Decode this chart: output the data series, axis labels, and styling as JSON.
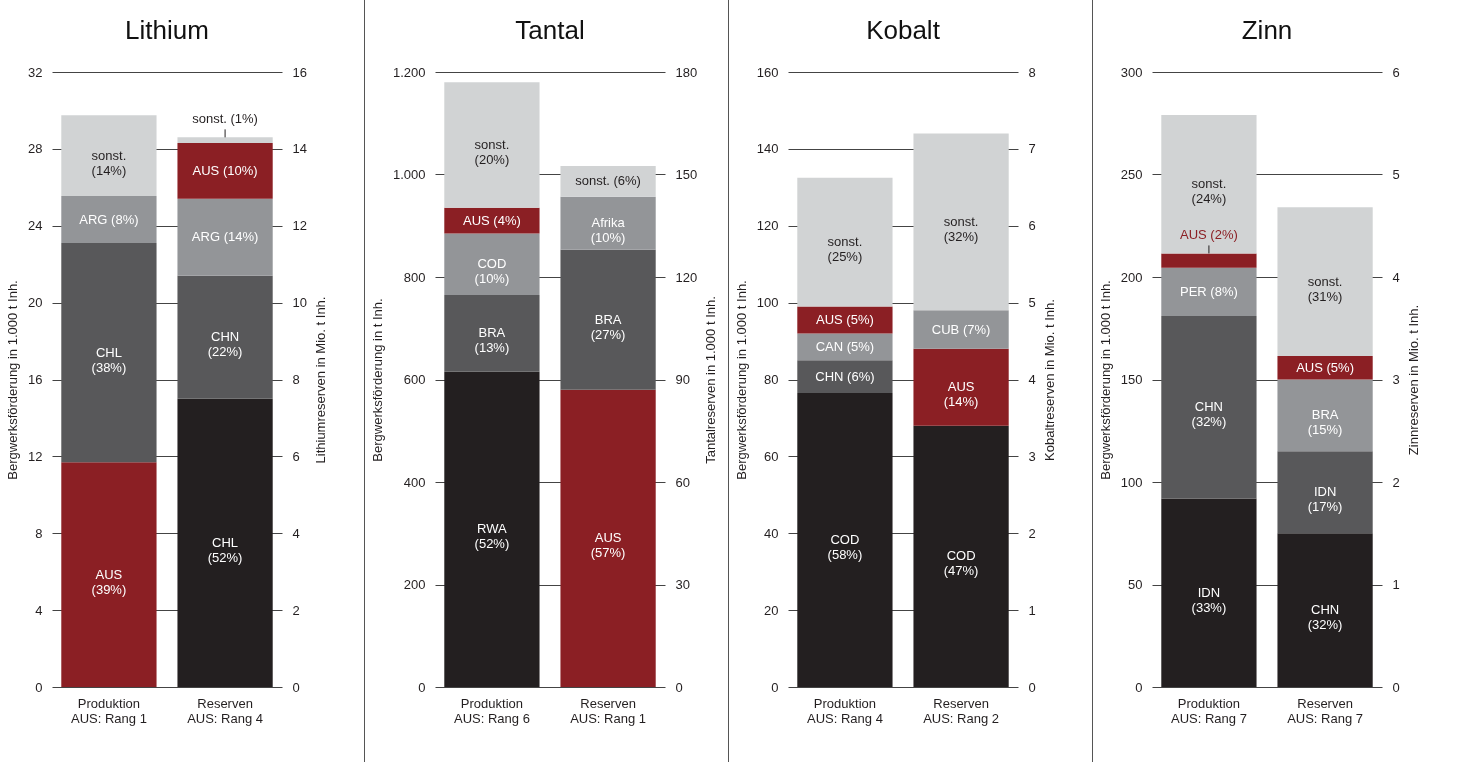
{
  "chart_data": [
    {
      "type": "bar",
      "stacked": true,
      "title": "Lithium",
      "ylabel": "Bergwerksförderung in 1.000 t Inh.",
      "y2label": "Lithiumreserven in Mio. t Inh.",
      "categories": [
        "Produktion\nAUS: Rang 1",
        "Reserven\nAUS: Rang 4"
      ],
      "ylim": [
        0,
        32
      ],
      "yticks": [
        0,
        4,
        8,
        12,
        16,
        20,
        24,
        28,
        32
      ],
      "y2lim": [
        0,
        16
      ],
      "y2ticks": [
        0,
        2,
        4,
        6,
        8,
        10,
        12,
        14,
        16
      ],
      "grid": "y",
      "series": [
        {
          "color": "#8b1f24",
          "values": [
            11.7,
            null
          ]
        },
        {
          "color": "#58585a",
          "values": [
            11.4,
            null
          ]
        },
        {
          "color": "#939598",
          "values": [
            2.45,
            null
          ]
        },
        {
          "color": "#d1d3d4",
          "values": [
            4.2,
            null
          ]
        },
        {
          "color": "#231f20",
          "values": [
            null,
            7.5
          ],
          "axis": "y2"
        },
        {
          "color": "#58585a",
          "values": [
            null,
            3.2
          ],
          "axis": "y2"
        },
        {
          "color": "#939598",
          "values": [
            null,
            2.0
          ],
          "axis": "y2"
        },
        {
          "color": "#8b1f24",
          "values": [
            null,
            1.45
          ],
          "axis": "y2"
        },
        {
          "color": "#d1d3d4",
          "values": [
            null,
            0.15
          ],
          "axis": "y2"
        }
      ],
      "annotations": [
        "AUS\n(39%)",
        "CHL\n(38%)",
        "ARG (8%)",
        "sonst.\n(14%)",
        "CHL\n(52%)",
        "CHN\n(22%)",
        "ARG (14%)",
        "AUS (10%)",
        "sonst. (1%)"
      ]
    },
    {
      "type": "bar",
      "stacked": true,
      "title": "Tantal",
      "ylabel": "Bergwerksförderung in t Inh.",
      "y2label": "Tantalreserven in 1.000 t Inh.",
      "categories": [
        "Produktion\nAUS: Rang 6",
        "Reserven\nAUS: Rang 1"
      ],
      "ylim": [
        0,
        1200
      ],
      "yticks": [
        0,
        200,
        400,
        600,
        800,
        {
          "value": 1000,
          "label": "1.000"
        },
        {
          "value": 1200,
          "label": "1.200"
        }
      ],
      "y2lim": [
        0,
        180
      ],
      "y2ticks": [
        0,
        30,
        60,
        90,
        120,
        150,
        180
      ],
      "grid": "y",
      "series": [
        {
          "color": "#231f20",
          "values": [
            615,
            null
          ]
        },
        {
          "color": "#58585a",
          "values": [
            150,
            null
          ]
        },
        {
          "color": "#939598",
          "values": [
            120,
            null
          ]
        },
        {
          "color": "#8b1f24",
          "values": [
            50,
            null
          ]
        },
        {
          "color": "#d1d3d4",
          "values": [
            245,
            null
          ]
        },
        {
          "color": "#8b1f24",
          "values": [
            null,
            87
          ],
          "axis": "y2"
        },
        {
          "color": "#58585a",
          "values": [
            null,
            41
          ],
          "axis": "y2"
        },
        {
          "color": "#939598",
          "values": [
            null,
            15.5
          ],
          "axis": "y2"
        },
        {
          "color": "#d1d3d4",
          "values": [
            null,
            9
          ],
          "axis": "y2"
        }
      ],
      "annotations": [
        "RWA\n(52%)",
        "BRA\n(13%)",
        "COD\n(10%)",
        "AUS (4%)",
        "sonst.\n(20%)",
        "AUS\n(57%)",
        "BRA\n(27%)",
        "Afrika\n(10%)",
        "sonst. (6%)"
      ]
    },
    {
      "type": "bar",
      "stacked": true,
      "title": "Kobalt",
      "ylabel": "Bergwerksförderung in 1.000 t Inh.",
      "y2label": "Kobaltreserven in Mio. t Inh.",
      "categories": [
        "Produktion\nAUS: Rang 4",
        "Reserven\nAUS: Rang 2"
      ],
      "ylim": [
        0,
        160
      ],
      "yticks": [
        0,
        20,
        40,
        60,
        80,
        100,
        120,
        140,
        160
      ],
      "y2lim": [
        0,
        8
      ],
      "y2ticks": [
        0,
        1,
        2,
        3,
        4,
        5,
        6,
        7,
        8
      ],
      "grid": "y",
      "series": [
        {
          "color": "#231f20",
          "values": [
            76.5,
            null
          ]
        },
        {
          "color": "#58585a",
          "values": [
            8.5,
            null
          ]
        },
        {
          "color": "#939598",
          "values": [
            7,
            null
          ]
        },
        {
          "color": "#8b1f24",
          "values": [
            7,
            null
          ]
        },
        {
          "color": "#d1d3d4",
          "values": [
            33.5,
            null
          ]
        },
        {
          "color": "#231f20",
          "values": [
            null,
            3.4
          ],
          "axis": "y2"
        },
        {
          "color": "#8b1f24",
          "values": [
            null,
            1.0
          ],
          "axis": "y2"
        },
        {
          "color": "#939598",
          "values": [
            null,
            0.5
          ],
          "axis": "y2"
        },
        {
          "color": "#d1d3d4",
          "values": [
            null,
            2.3
          ],
          "axis": "y2"
        }
      ],
      "annotations": [
        "COD\n(58%)",
        "CHN (6%)",
        "CAN (5%)",
        "AUS (5%)",
        "sonst.\n(25%)",
        "COD\n(47%)",
        "AUS\n(14%)",
        "CUB (7%)",
        "sonst.\n(32%)"
      ]
    },
    {
      "type": "bar",
      "stacked": true,
      "title": "Zinn",
      "ylabel": "Bergwerksförderung in 1.000 t Inh.",
      "y2label": "Zinnreserven in Mio. t Inh.",
      "categories": [
        "Produktion\nAUS: Rang 7",
        "Reserven\nAUS: Rang 7"
      ],
      "ylim": [
        0,
        300
      ],
      "yticks": [
        0,
        50,
        100,
        150,
        200,
        250,
        300
      ],
      "y2lim": [
        0,
        6
      ],
      "y2ticks": [
        0,
        1,
        2,
        3,
        4,
        5,
        6
      ],
      "grid": "y",
      "series": [
        {
          "color": "#231f20",
          "values": [
            92,
            null
          ]
        },
        {
          "color": "#58585a",
          "values": [
            89,
            null
          ]
        },
        {
          "color": "#939598",
          "values": [
            23.5,
            null
          ]
        },
        {
          "color": "#8b1f24",
          "values": [
            7,
            null
          ]
        },
        {
          "color": "#d1d3d4",
          "values": [
            67.5,
            null
          ]
        },
        {
          "color": "#231f20",
          "values": [
            null,
            1.5
          ],
          "axis": "y2"
        },
        {
          "color": "#58585a",
          "values": [
            null,
            0.8
          ],
          "axis": "y2"
        },
        {
          "color": "#939598",
          "values": [
            null,
            0.7
          ],
          "axis": "y2"
        },
        {
          "color": "#8b1f24",
          "values": [
            null,
            0.23
          ],
          "axis": "y2"
        },
        {
          "color": "#d1d3d4",
          "values": [
            null,
            1.45
          ],
          "axis": "y2"
        }
      ],
      "annotations": [
        "IDN\n(33%)",
        "CHN\n(32%)",
        "PER (8%)",
        "AUS (2%)",
        "sonst.\n(24%)",
        "CHN\n(32%)",
        "IDN\n(17%)",
        "BRA\n(15%)",
        "AUS (5%)",
        "sonst.\n(31%)"
      ]
    }
  ]
}
